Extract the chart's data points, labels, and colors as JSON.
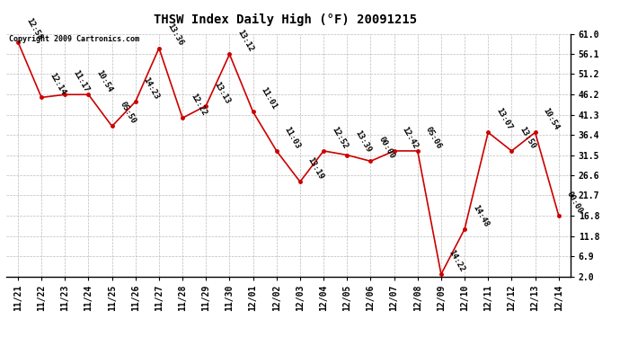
{
  "title": "THSW Index Daily High (°F) 20091215",
  "copyright": "Copyright 2009 Cartronics.com",
  "dates": [
    "11/21",
    "11/22",
    "11/23",
    "11/24",
    "11/25",
    "11/26",
    "11/27",
    "11/28",
    "11/29",
    "11/30",
    "12/01",
    "12/02",
    "12/03",
    "12/04",
    "12/05",
    "12/06",
    "12/07",
    "12/08",
    "12/09",
    "12/10",
    "12/11",
    "12/12",
    "12/13",
    "12/14"
  ],
  "values": [
    59.0,
    45.5,
    46.2,
    46.2,
    38.5,
    44.5,
    57.5,
    40.5,
    43.5,
    56.0,
    42.0,
    32.5,
    25.0,
    32.5,
    31.5,
    30.0,
    32.5,
    32.5,
    2.5,
    13.5,
    37.0,
    32.5,
    37.0,
    16.8
  ],
  "time_labels": [
    "12:58",
    "12:14",
    "11:17",
    "10:54",
    "05:50",
    "14:23",
    "13:36",
    "12:22",
    "13:13",
    "13:12",
    "11:01",
    "11:03",
    "13:19",
    "12:52",
    "13:39",
    "00:00",
    "12:42",
    "05:06",
    "14:22",
    "14:48",
    "13:07",
    "13:50",
    "10:54",
    "00:00"
  ],
  "ylim": [
    2.0,
    61.0
  ],
  "yticks": [
    2.0,
    6.9,
    11.8,
    16.8,
    21.7,
    26.6,
    31.5,
    36.4,
    41.3,
    46.2,
    51.2,
    56.1,
    61.0
  ],
  "line_color": "#cc0000",
  "marker_color": "#cc0000",
  "bg_color": "#ffffff",
  "grid_color": "#bbbbbb",
  "title_fontsize": 10,
  "label_fontsize": 6.5,
  "tick_fontsize": 7,
  "copyright_fontsize": 6
}
